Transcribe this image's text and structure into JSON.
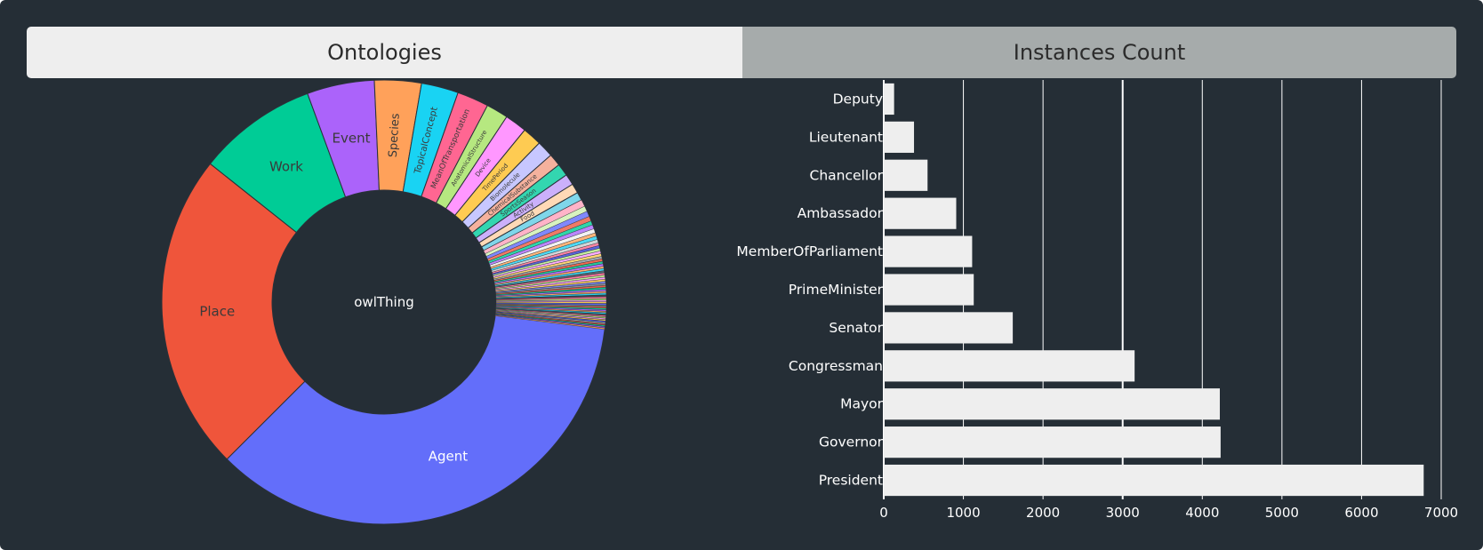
{
  "tabs": {
    "ontologies": "Ontologies",
    "instances": "Instances Count"
  },
  "colors": {
    "background": "#252e36",
    "bar_fill": "#eeeeee",
    "active_tab": "#eeeeee",
    "inactive_tab": "#a6abab"
  },
  "chart_data": [
    {
      "type": "sunburst",
      "root": "owlThing",
      "total": 100,
      "slices": [
        {
          "label": "Agent",
          "value": 37.5,
          "color": "#636efa"
        },
        {
          "label": "Place",
          "value": 23.2,
          "color": "#ef553b"
        },
        {
          "label": "Work",
          "value": 8.7,
          "color": "#00cc96"
        },
        {
          "label": "Event",
          "value": 4.9,
          "color": "#ab63fa"
        },
        {
          "label": "Species",
          "value": 3.4,
          "color": "#ffa15a"
        },
        {
          "label": "TopicalConcept",
          "value": 2.7,
          "color": "#19d3f3"
        },
        {
          "label": "MeanOfTransportation",
          "value": 2.3,
          "color": "#ff6692"
        },
        {
          "label": "AnatomicalStructure",
          "value": 1.6,
          "color": "#b6e880"
        },
        {
          "label": "Device",
          "value": 1.6,
          "color": "#ff97ff"
        },
        {
          "label": "TimePeriod",
          "value": 1.4,
          "color": "#fecb52"
        },
        {
          "label": "Biomolecule",
          "value": 1.2,
          "color": "#c7c7ff"
        },
        {
          "label": "ChemicalSubstance",
          "value": 0.9,
          "color": "#f5b19d"
        },
        {
          "label": "SportsSeason",
          "value": 0.9,
          "color": "#33d6b0"
        },
        {
          "label": "Activity",
          "value": 0.8,
          "color": "#cbb0fb"
        },
        {
          "label": "Food",
          "value": 0.7,
          "color": "#ffd9b6"
        },
        {
          "label": "",
          "value": 0.6,
          "color": "#7fd6ea"
        },
        {
          "label": "",
          "value": 0.5,
          "color": "#ffb3c8"
        },
        {
          "label": "",
          "value": 0.4,
          "color": "#d8f2bf"
        },
        {
          "label": "",
          "value": 0.4,
          "color": "#8088fb"
        },
        {
          "label": "",
          "value": 0.35,
          "color": "#ef7a66"
        },
        {
          "label": "",
          "value": 0.3,
          "color": "#30d6a9"
        },
        {
          "label": "",
          "value": 0.3,
          "color": "#bb86fb"
        },
        {
          "label": "",
          "value": 0.3,
          "color": "#f2f2f2"
        },
        {
          "label": "",
          "value": 0.25,
          "color": "#ffb57a"
        },
        {
          "label": "",
          "value": 0.25,
          "color": "#4ddaf4"
        },
        {
          "label": "",
          "value": 0.25,
          "color": "#d2d6d8"
        },
        {
          "label": "",
          "value": 0.2,
          "color": "#ff85a4"
        },
        {
          "label": "",
          "value": 0.2,
          "color": "#5a63d9"
        },
        {
          "label": "",
          "value": 0.2,
          "color": "#c5ed9f"
        },
        {
          "label": "",
          "value": 0.2,
          "color": "#ffacff"
        },
        {
          "label": "",
          "value": 0.2,
          "color": "#fed575"
        },
        {
          "label": "",
          "value": 0.18,
          "color": "#a4aab0"
        },
        {
          "label": "",
          "value": 0.18,
          "color": "#ef6a50"
        },
        {
          "label": "",
          "value": 0.18,
          "color": "#26c79a"
        },
        {
          "label": "",
          "value": 0.18,
          "color": "#b972fa"
        },
        {
          "label": "",
          "value": 0.16,
          "color": "#ffae6f"
        },
        {
          "label": "",
          "value": 0.16,
          "color": "#3ad6f2"
        },
        {
          "label": "",
          "value": 0.16,
          "color": "#5d666f"
        },
        {
          "label": "",
          "value": 0.16,
          "color": "#ff77a0"
        },
        {
          "label": "",
          "value": 0.15,
          "color": "#c0ea90"
        },
        {
          "label": "",
          "value": 0.15,
          "color": "#ffa2ff"
        },
        {
          "label": "",
          "value": 0.15,
          "color": "#fed061"
        },
        {
          "label": "",
          "value": 0.15,
          "color": "#7b84ea"
        },
        {
          "label": "",
          "value": 0.14,
          "color": "#8a939b"
        },
        {
          "label": "",
          "value": 0.14,
          "color": "#e8604a"
        },
        {
          "label": "",
          "value": 0.14,
          "color": "#14c593"
        },
        {
          "label": "",
          "value": 0.14,
          "color": "#a86ef0"
        },
        {
          "label": "",
          "value": 0.13,
          "color": "#f8a668"
        },
        {
          "label": "",
          "value": 0.13,
          "color": "#2ad0ec"
        },
        {
          "label": "",
          "value": 0.13,
          "color": "#3d464f"
        },
        {
          "label": "",
          "value": 0.13,
          "color": "#f86e94"
        },
        {
          "label": "",
          "value": 0.12,
          "color": "#b0e37a"
        },
        {
          "label": "",
          "value": 0.12,
          "color": "#f29cf3"
        },
        {
          "label": "",
          "value": 0.12,
          "color": "#f3c54d"
        },
        {
          "label": "",
          "value": 0.12,
          "color": "#5964f2"
        },
        {
          "label": "",
          "value": 0.11,
          "color": "#7a838b"
        },
        {
          "label": "",
          "value": 0.11,
          "color": "#e45c46"
        },
        {
          "label": "",
          "value": 0.11,
          "color": "#0fc08f"
        },
        {
          "label": "",
          "value": 0.11,
          "color": "#a25cf0"
        },
        {
          "label": "",
          "value": 0.1,
          "color": "#f29e56"
        },
        {
          "label": "",
          "value": 0.1,
          "color": "#18c6e6"
        },
        {
          "label": "",
          "value": 0.1,
          "color": "#4a535c"
        },
        {
          "label": "",
          "value": 0.1,
          "color": "#f26a8d"
        },
        {
          "label": "",
          "value": 0.1,
          "color": "#a7da73"
        },
        {
          "label": "",
          "value": 0.1,
          "color": "#ec92ec"
        },
        {
          "label": "",
          "value": 0.1,
          "color": "#ecc04a"
        },
        {
          "label": "",
          "value": 0.1,
          "color": "#4c55e0"
        },
        {
          "label": "",
          "value": 0.1,
          "color": "#9aa2aa"
        },
        {
          "label": "",
          "value": 0.1,
          "color": "#d94f3a"
        },
        {
          "label": "",
          "value": 0.1,
          "color": "#0bb886"
        },
        {
          "label": "",
          "value": 0.1,
          "color": "#9651e8"
        },
        {
          "label": "",
          "value": 0.1,
          "color": "#ec974f"
        }
      ]
    },
    {
      "type": "bar",
      "orientation": "horizontal",
      "categories": [
        "Deputy",
        "Lieutenant",
        "Chancellor",
        "Ambassador",
        "MemberOfParliament",
        "PrimeMinister",
        "Senator",
        "Congressman",
        "Mayor",
        "Governor",
        "President"
      ],
      "values": [
        130,
        380,
        550,
        910,
        1110,
        1130,
        1620,
        3150,
        4220,
        4230,
        6780
      ],
      "xlim": [
        0,
        7000
      ],
      "xticks": [
        0,
        1000,
        2000,
        3000,
        4000,
        5000,
        6000,
        7000
      ],
      "xlabel": "",
      "ylabel": "",
      "grid": "vertical"
    }
  ]
}
